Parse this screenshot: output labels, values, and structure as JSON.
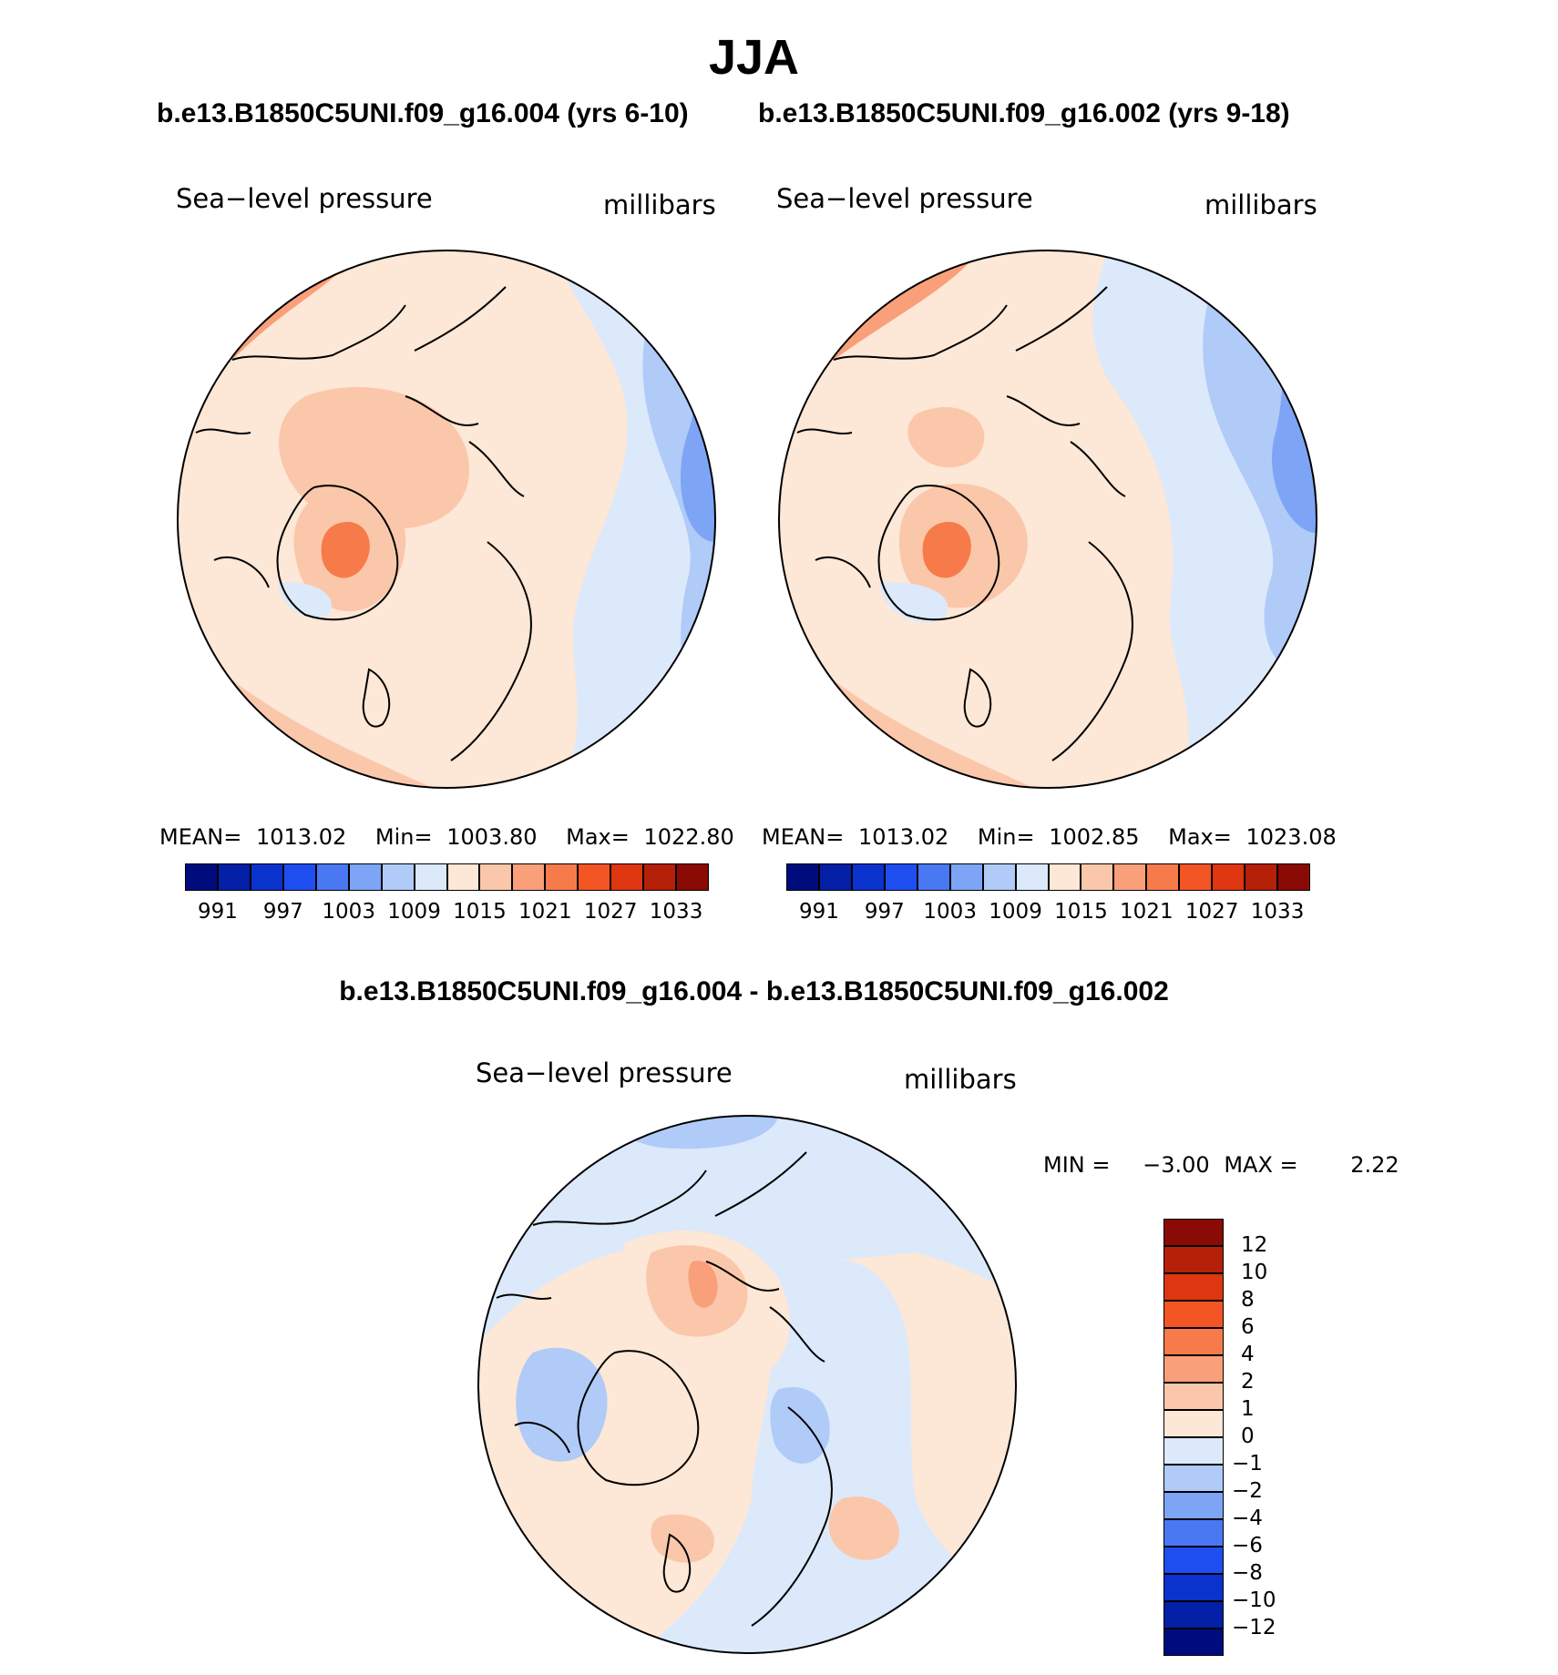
{
  "page": {
    "season": "JJA",
    "case1_title": "b.e13.B1850C5UNI.f09_g16.004 (yrs 6-10)",
    "case2_title": "b.e13.B1850C5UNI.f09_g16.002 (yrs 9-18)",
    "diff_title": "b.e13.B1850C5UNI.f09_g16.004 - b.e13.B1850C5UNI.f09_g16.002"
  },
  "panels": [
    {
      "variable": "Sea−level pressure",
      "units": "millibars",
      "stats": {
        "mean_label": "MEAN=",
        "mean": "1013.02",
        "min_label": "Min=",
        "min": "1003.80",
        "max_label": "Max=",
        "max": "1022.80"
      }
    },
    {
      "variable": "Sea−level pressure",
      "units": "millibars",
      "stats": {
        "mean_label": "MEAN=",
        "mean": "1013.02",
        "min_label": "Min=",
        "min": "1002.85",
        "max_label": "Max=",
        "max": "1023.08"
      }
    },
    {
      "variable": "Sea−level pressure",
      "units": "millibars",
      "stats": {
        "min_label": "MIN =",
        "min": "−3.00",
        "max_label": "MAX =",
        "max": "2.22"
      }
    }
  ],
  "colorbar_abs": {
    "colors": [
      "#000c7e",
      "#0420a6",
      "#0a32cc",
      "#1f4ef0",
      "#4a78f2",
      "#7ea4f6",
      "#b0cbf8",
      "#dce9fb",
      "#fde7d6",
      "#fbc7aa",
      "#f9a07a",
      "#f77a4a",
      "#f45524",
      "#de3610",
      "#b52008",
      "#8a0a05"
    ],
    "tick_labels": [
      "991",
      "997",
      "1003",
      "1009",
      "1015",
      "1021",
      "1027",
      "1033"
    ]
  },
  "colorbar_diff": {
    "colors": [
      "#000c7e",
      "#0420a6",
      "#0a32cc",
      "#1f4ef0",
      "#4a78f2",
      "#7ea4f6",
      "#b0cbf8",
      "#dce9fb",
      "#fde7d6",
      "#fbc7aa",
      "#f9a07a",
      "#f77a4a",
      "#f45524",
      "#de3610",
      "#b52008",
      "#8a0a05"
    ],
    "tick_labels": [
      "12",
      "10",
      "8",
      "6",
      "4",
      "2",
      "1",
      "0",
      "−1",
      "−2",
      "−4",
      "−6",
      "−8",
      "−10",
      "−12"
    ]
  }
}
